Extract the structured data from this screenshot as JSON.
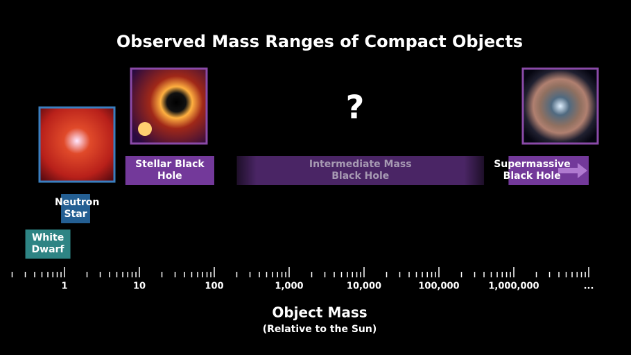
{
  "chart_data": {
    "type": "range",
    "title": "Observed Mass Ranges of Compact Objects",
    "annotation": "?",
    "x_label": "Object Mass",
    "x_sublabel": "(Relative to the Sun)",
    "x_scale": "log",
    "xlim": [
      0.2,
      10000000
    ],
    "xticks": [
      1,
      10,
      100,
      {
        "value": 1000,
        "label": "1,000"
      },
      {
        "value": 10000,
        "label": "10,000"
      },
      {
        "value": 100000,
        "label": "100,000"
      },
      {
        "value": 1000000,
        "label": "1,000,000"
      },
      {
        "value": 10000000,
        "label": "..."
      }
    ],
    "minor_xticks": [
      0.2,
      0.3,
      0.4,
      0.5,
      0.6,
      0.7,
      0.8,
      0.9,
      2,
      3,
      4,
      5,
      6,
      7,
      8,
      9,
      20,
      30,
      40,
      50,
      60,
      70,
      80,
      90,
      200,
      300,
      400,
      500,
      600,
      700,
      800,
      900,
      2000,
      3000,
      4000,
      5000,
      6000,
      7000,
      8000,
      9000,
      20000,
      30000,
      40000,
      50000,
      60000,
      70000,
      80000,
      90000,
      200000,
      300000,
      400000,
      500000,
      600000,
      700000,
      800000,
      900000,
      2000000,
      3000000,
      4000000,
      5000000,
      6000000,
      7000000,
      8000000,
      9000000
    ],
    "series": [
      {
        "name": "White Dwarf",
        "start": 0.3,
        "end": 1.2,
        "color": "#2e8484"
      },
      {
        "name": "Neutron Star",
        "start": 0.9,
        "end": 2.2,
        "color": "#245f93"
      },
      {
        "name": "Stellar Black Hole",
        "start": 6.5,
        "end": 100,
        "color": "#73399a"
      },
      {
        "name": "Intermediate Mass Black Hole",
        "start": 200,
        "end": 400000,
        "color": "#4a2565"
      },
      {
        "name": "Supermassive Black Hole",
        "start": 850000,
        "end": 10000000,
        "color": "#73399a"
      }
    ]
  }
}
